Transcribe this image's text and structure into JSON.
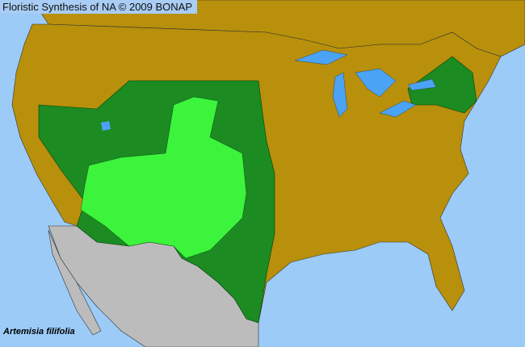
{
  "header": {
    "title": "Floristic Synthesis of NA © 2009 BONAP"
  },
  "species": {
    "name": "Artemisia filifolia"
  },
  "legend_colors": {
    "ocean": "#9ccbf8",
    "not_present": "#b8900b",
    "present_in_state": "#1b8b22",
    "present_in_county": "#3cf43c",
    "outside_coverage": "#bcbcbc",
    "lakes": "#4aa3f5"
  }
}
